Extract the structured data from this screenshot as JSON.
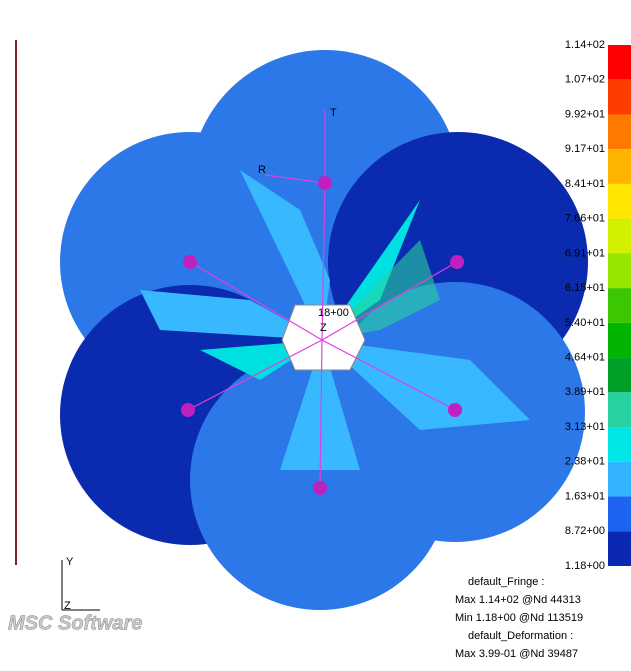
{
  "legend": {
    "labels": [
      "1.14+02",
      "1.07+02",
      "9.92+01",
      "9.17+01",
      "8.41+01",
      "7.66+01",
      "6.91+01",
      "6.15+01",
      "5.40+01",
      "4.64+01",
      "3.89+01",
      "3.13+01",
      "2.38+01",
      "1.63+01",
      "8.72+00",
      "1.18+00"
    ],
    "colors": [
      "#ff0000",
      "#ff3c00",
      "#ff7800",
      "#ffb400",
      "#ffe600",
      "#d2f000",
      "#96e600",
      "#3cc800",
      "#00b400",
      "#00a028",
      "#28d2a0",
      "#00e6e6",
      "#32b4ff",
      "#1e64f0",
      "#0a28b4"
    ]
  },
  "info": [
    "default_Fringe :",
    "Max 1.14+02 @Nd 44313",
    "Min 1.18+00 @Nd 113519",
    "default_Deformation :",
    "Max 3.99-01 @Nd 39487"
  ],
  "model": {
    "center_label": "18+00",
    "axis_t": "T",
    "axis_r": "R",
    "axis_z": "Z"
  },
  "triad": {
    "y": "Y",
    "z": "Z"
  },
  "logo": "MSC Software"
}
